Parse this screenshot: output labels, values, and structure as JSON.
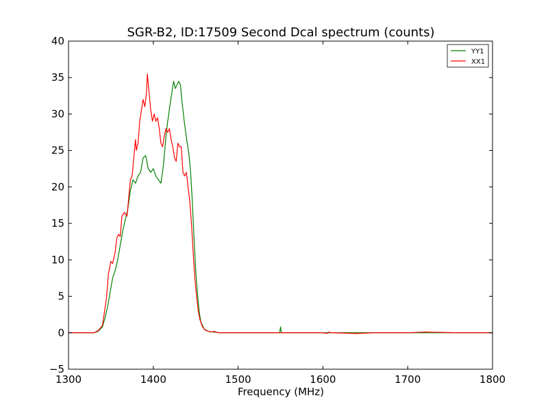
{
  "chart_data": {
    "type": "line",
    "title": "SGR-B2, ID:17509 Second Dcal spectrum (counts)",
    "xlabel": "Frequency (MHz)",
    "ylabel": "",
    "xlim": [
      1300,
      1800
    ],
    "ylim": [
      -5,
      40
    ],
    "x_ticks": [
      1300,
      1400,
      1500,
      1600,
      1700,
      1800
    ],
    "x_tick_labels": [
      "1300",
      "1400",
      "1500",
      "1600",
      "1700",
      "1800"
    ],
    "y_ticks": [
      -5,
      0,
      5,
      10,
      15,
      20,
      25,
      30,
      35,
      40
    ],
    "y_tick_labels": [
      "−5",
      "0",
      "5",
      "10",
      "15",
      "20",
      "25",
      "30",
      "35",
      "40"
    ],
    "grid": false,
    "legend": {
      "position": "top-right",
      "entries": [
        "YY1",
        "XX1"
      ]
    },
    "series": [
      {
        "name": "YY1",
        "color": "#008000",
        "points": [
          [
            1300,
            0
          ],
          [
            1330,
            0
          ],
          [
            1335,
            0.2
          ],
          [
            1340,
            0.8
          ],
          [
            1343,
            2.0
          ],
          [
            1346,
            3.5
          ],
          [
            1349,
            5.5
          ],
          [
            1352,
            7.5
          ],
          [
            1355,
            8.5
          ],
          [
            1358,
            10.0
          ],
          [
            1361,
            12.0
          ],
          [
            1364,
            14.0
          ],
          [
            1367,
            15.5
          ],
          [
            1370,
            17.0
          ],
          [
            1373,
            19.5
          ],
          [
            1376,
            21.0
          ],
          [
            1379,
            20.5
          ],
          [
            1382,
            21.5
          ],
          [
            1385,
            22.0
          ],
          [
            1388,
            24.0
          ],
          [
            1391,
            24.3
          ],
          [
            1394,
            22.5
          ],
          [
            1397,
            22.0
          ],
          [
            1400,
            22.5
          ],
          [
            1403,
            21.5
          ],
          [
            1406,
            21.0
          ],
          [
            1409,
            20.5
          ],
          [
            1412,
            23.0
          ],
          [
            1415,
            27.0
          ],
          [
            1417,
            29.0
          ],
          [
            1420,
            31.5
          ],
          [
            1422,
            33.0
          ],
          [
            1424,
            34.5
          ],
          [
            1426,
            33.5
          ],
          [
            1428,
            34.0
          ],
          [
            1430,
            34.5
          ],
          [
            1432,
            34.0
          ],
          [
            1434,
            31.5
          ],
          [
            1437,
            28.5
          ],
          [
            1440,
            26.0
          ],
          [
            1442,
            24.5
          ],
          [
            1444,
            22.0
          ],
          [
            1446,
            18.0
          ],
          [
            1448,
            13.0
          ],
          [
            1450,
            8.5
          ],
          [
            1452,
            5.5
          ],
          [
            1454,
            3.0
          ],
          [
            1456,
            1.5
          ],
          [
            1460,
            0.5
          ],
          [
            1465,
            0.2
          ],
          [
            1470,
            0.1
          ],
          [
            1480,
            0
          ],
          [
            1549,
            0
          ],
          [
            1550,
            0.8
          ],
          [
            1551,
            0
          ],
          [
            1600,
            0
          ],
          [
            1700,
            0
          ],
          [
            1800,
            0
          ]
        ]
      },
      {
        "name": "XX1",
        "color": "#ff0000",
        "points": [
          [
            1300,
            0
          ],
          [
            1330,
            0
          ],
          [
            1335,
            0.3
          ],
          [
            1340,
            1.0
          ],
          [
            1342,
            2.5
          ],
          [
            1345,
            5.0
          ],
          [
            1347,
            8.0
          ],
          [
            1350,
            9.8
          ],
          [
            1352,
            9.5
          ],
          [
            1355,
            11.0
          ],
          [
            1357,
            13.0
          ],
          [
            1359,
            13.5
          ],
          [
            1361,
            13.2
          ],
          [
            1363,
            16.0
          ],
          [
            1366,
            16.5
          ],
          [
            1369,
            16.0
          ],
          [
            1371,
            18.5
          ],
          [
            1373,
            21.0
          ],
          [
            1375,
            21.5
          ],
          [
            1377,
            24.0
          ],
          [
            1379,
            26.5
          ],
          [
            1380,
            25.0
          ],
          [
            1382,
            26.0
          ],
          [
            1384,
            29.0
          ],
          [
            1386,
            30.5
          ],
          [
            1388,
            32.0
          ],
          [
            1390,
            31.0
          ],
          [
            1392,
            33.0
          ],
          [
            1393,
            35.5
          ],
          [
            1395,
            33.0
          ],
          [
            1397,
            30.5
          ],
          [
            1399,
            29.0
          ],
          [
            1401,
            30.0
          ],
          [
            1403,
            29.0
          ],
          [
            1405,
            29.5
          ],
          [
            1407,
            28.0
          ],
          [
            1409,
            26.0
          ],
          [
            1411,
            25.5
          ],
          [
            1413,
            27.0
          ],
          [
            1415,
            28.0
          ],
          [
            1417,
            27.5
          ],
          [
            1419,
            28.0
          ],
          [
            1421,
            26.5
          ],
          [
            1423,
            25.5
          ],
          [
            1425,
            24.0
          ],
          [
            1427,
            23.5
          ],
          [
            1429,
            26.0
          ],
          [
            1431,
            25.5
          ],
          [
            1433,
            25.5
          ],
          [
            1435,
            22.0
          ],
          [
            1437,
            21.5
          ],
          [
            1439,
            22.0
          ],
          [
            1441,
            20.0
          ],
          [
            1443,
            18.0
          ],
          [
            1445,
            15.0
          ],
          [
            1447,
            11.0
          ],
          [
            1449,
            7.5
          ],
          [
            1451,
            5.0
          ],
          [
            1453,
            3.0
          ],
          [
            1455,
            1.8
          ],
          [
            1458,
            0.8
          ],
          [
            1462,
            0.3
          ],
          [
            1468,
            0.1
          ],
          [
            1472,
            0.2
          ],
          [
            1476,
            0
          ],
          [
            1600,
            0
          ],
          [
            1605,
            -0.1
          ],
          [
            1607,
            0.1
          ],
          [
            1610,
            0
          ],
          [
            1640,
            -0.1
          ],
          [
            1660,
            0
          ],
          [
            1700,
            0
          ],
          [
            1720,
            0.1
          ],
          [
            1760,
            0
          ],
          [
            1800,
            0
          ]
        ]
      }
    ]
  }
}
